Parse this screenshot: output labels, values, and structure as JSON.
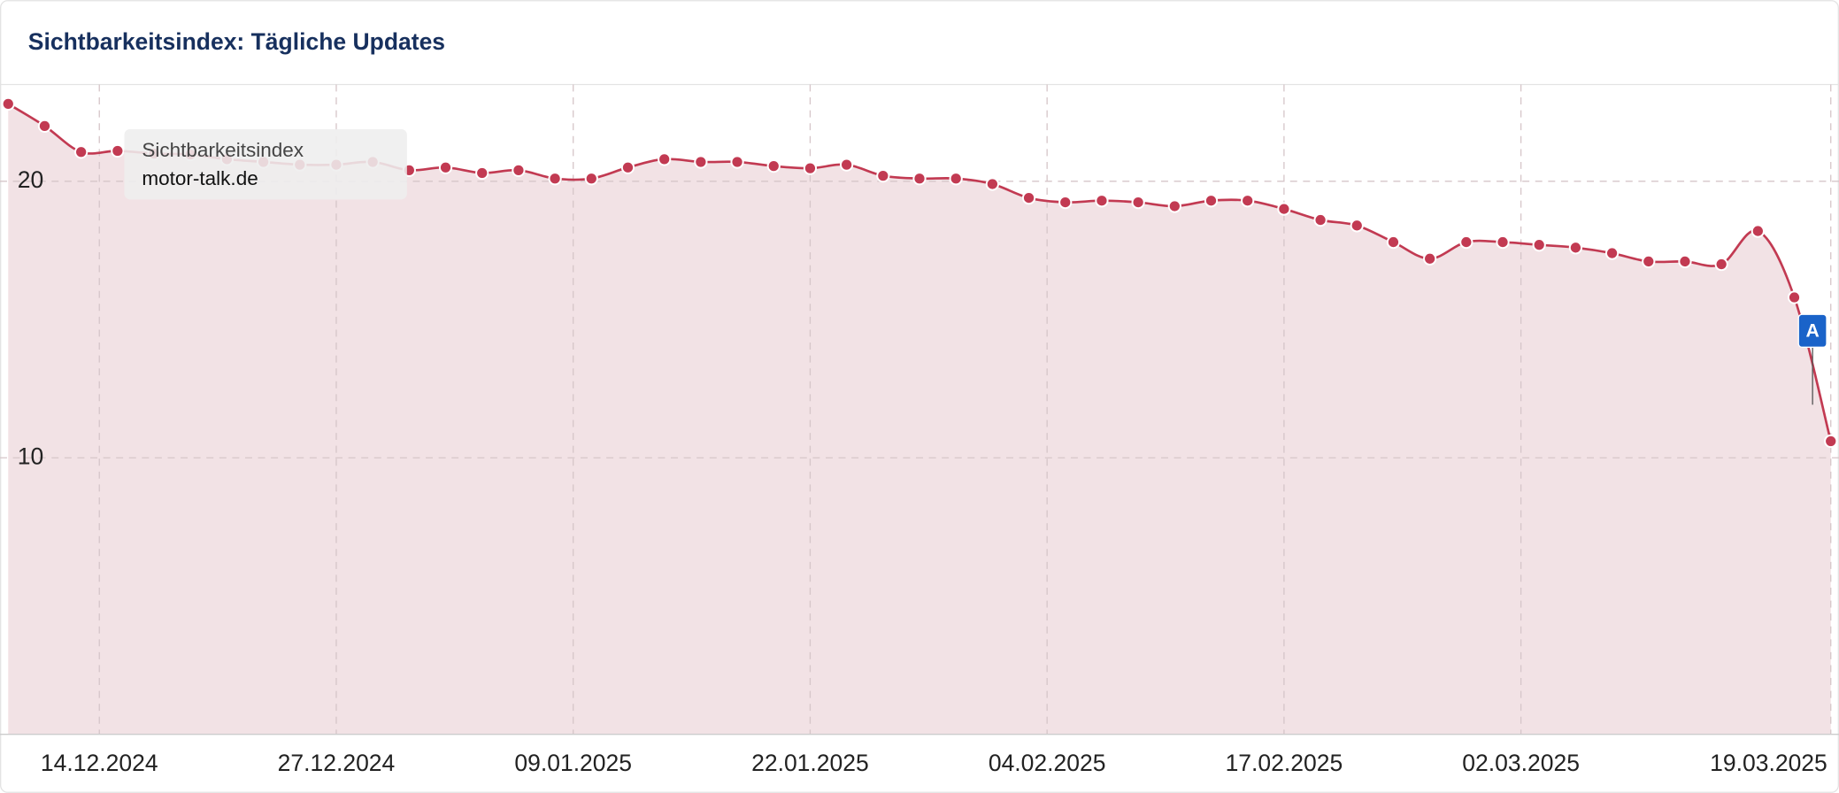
{
  "chart_data": {
    "type": "line",
    "title": "Sichtbarkeitsindex: Tägliche Updates",
    "x": [
      "09.12.2024",
      "11.12.2024",
      "13.12.2024",
      "15.12.2024",
      "17.12.2024",
      "19.12.2024",
      "21.12.2024",
      "23.12.2024",
      "25.12.2024",
      "27.12.2024",
      "29.12.2024",
      "31.12.2024",
      "02.01.2025",
      "04.01.2025",
      "06.01.2025",
      "08.01.2025",
      "10.01.2025",
      "12.01.2025",
      "14.01.2025",
      "16.01.2025",
      "18.01.2025",
      "20.01.2025",
      "22.01.2025",
      "24.01.2025",
      "26.01.2025",
      "28.01.2025",
      "30.01.2025",
      "01.02.2025",
      "03.02.2025",
      "05.02.2025",
      "07.02.2025",
      "09.02.2025",
      "11.02.2025",
      "13.02.2025",
      "15.02.2025",
      "17.02.2025",
      "19.02.2025",
      "21.02.2025",
      "23.02.2025",
      "25.02.2025",
      "27.02.2025",
      "01.03.2025",
      "03.03.2025",
      "05.03.2025",
      "07.03.2025",
      "09.03.2025",
      "11.03.2025",
      "13.03.2025",
      "15.03.2025",
      "17.03.2025",
      "19.03.2025"
    ],
    "series": [
      {
        "name": "motor-talk.de",
        "color": "#c23a52",
        "values": [
          22.8,
          22.0,
          21.06,
          21.1,
          21.0,
          20.97,
          20.8,
          20.7,
          20.6,
          20.6,
          20.7,
          20.4,
          20.5,
          20.3,
          20.4,
          20.1,
          20.1,
          20.5,
          20.8,
          20.7,
          20.7,
          20.55,
          20.47,
          20.6,
          20.2,
          20.1,
          20.1,
          19.9,
          19.4,
          19.24,
          19.3,
          19.24,
          19.1,
          19.3,
          19.3,
          19.0,
          18.6,
          18.4,
          17.8,
          17.2,
          17.8,
          17.8,
          17.7,
          17.6,
          17.4,
          17.1,
          17.1,
          17.0,
          18.2,
          15.8,
          10.6
        ]
      }
    ],
    "tooltip_title": "Sichtbarkeitsindex",
    "annotation": {
      "x": "18.03.2025",
      "label": "A"
    },
    "xlim": [
      "09.12.2024",
      "19.03.2025"
    ],
    "xticks": [
      "14.12.2024",
      "27.12.2024",
      "09.01.2025",
      "22.01.2025",
      "04.02.2025",
      "17.02.2025",
      "02.03.2025",
      "19.03.2025"
    ],
    "ylim": [
      0,
      23.5
    ],
    "yticks": [
      10,
      20
    ],
    "grid": true,
    "fill_color": "#f0dde0"
  }
}
